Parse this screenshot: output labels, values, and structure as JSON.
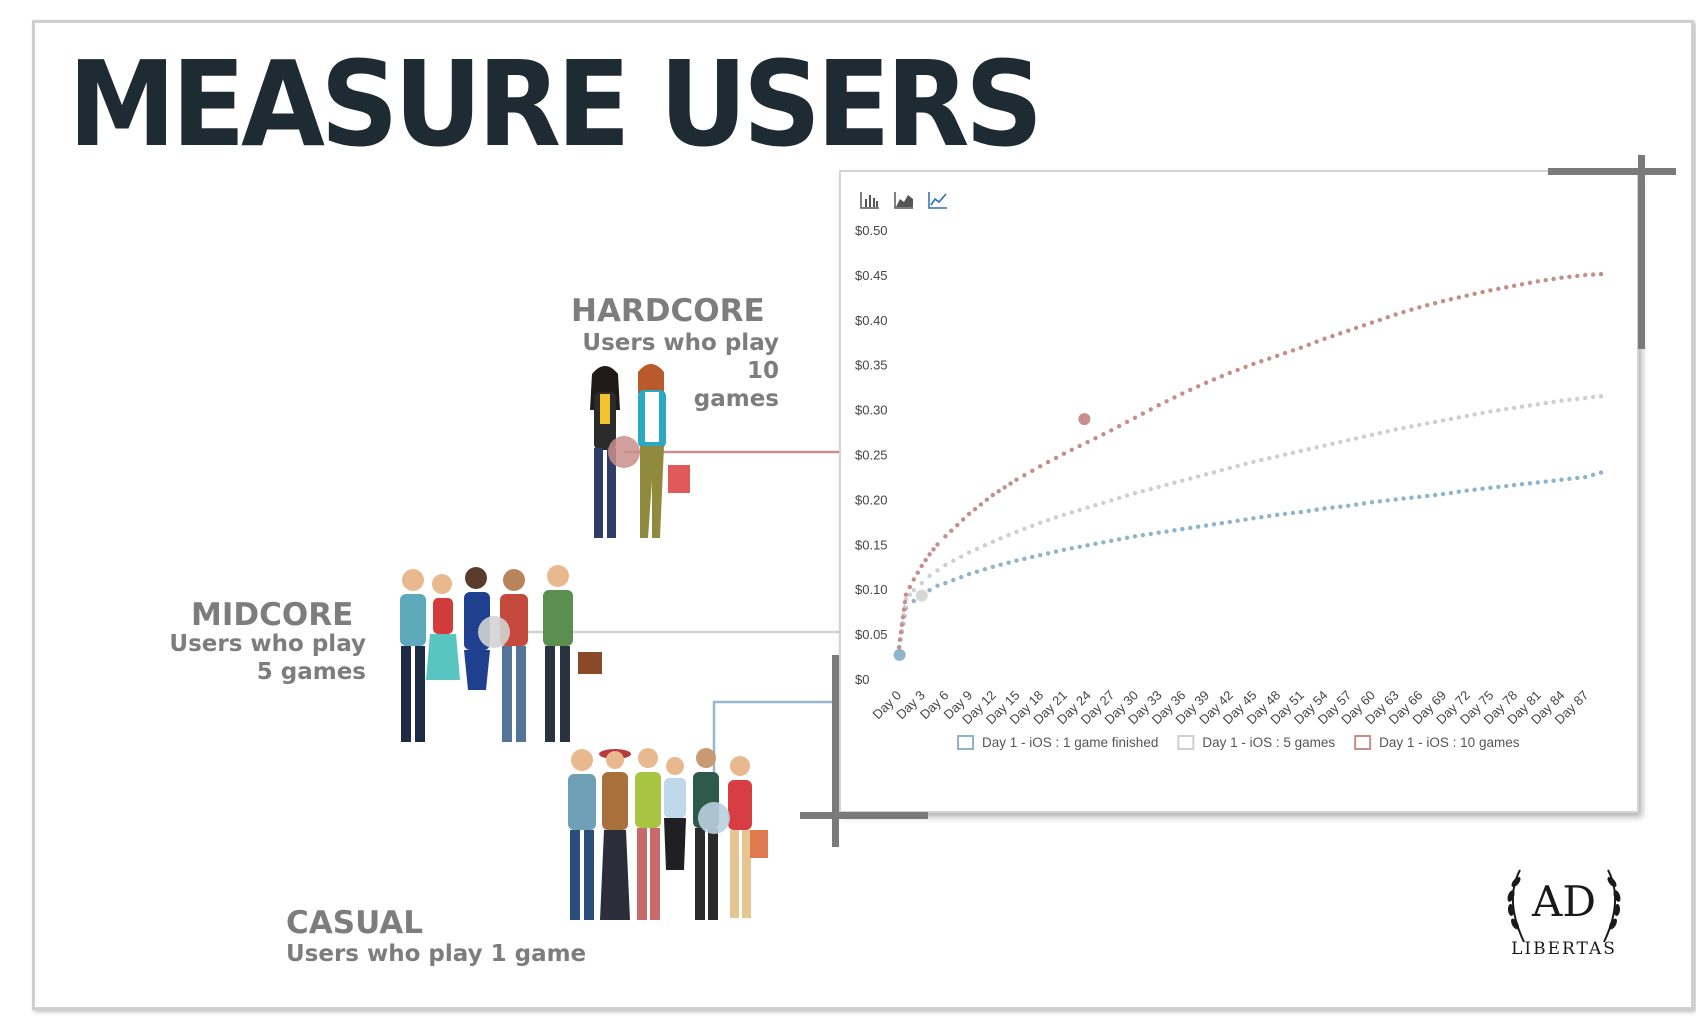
{
  "title": "MEASURE USERS",
  "segments": {
    "hardcore": {
      "name": "HARDCORE",
      "desc_line1": "Users who play 10",
      "desc_line2": "games",
      "color": "#c98f8b"
    },
    "midcore": {
      "name": "MIDCORE",
      "desc_line1": "Users who play",
      "desc_line2": "5 games",
      "color": "#d3d3d3"
    },
    "casual": {
      "name": "CASUAL",
      "desc_line1": "Users who play 1 game",
      "color": "#98b8ce"
    }
  },
  "toolbar": {
    "icons": [
      "bar-chart-icon",
      "area-chart-icon",
      "line-chart-icon"
    ]
  },
  "logo": {
    "text": "AD",
    "subtext": "LIBERTAS"
  },
  "chart_data": {
    "type": "line",
    "y_ticks": [
      "$0",
      "$0.05",
      "$0.10",
      "$0.15",
      "$0.20",
      "$0.25",
      "$0.30",
      "$0.35",
      "$0.40",
      "$0.45",
      "$0.50"
    ],
    "ylim": [
      0,
      0.5
    ],
    "x_ticks": [
      "Day 0",
      "Day 3",
      "Day 6",
      "Day 9",
      "Day 12",
      "Day 15",
      "Day 18",
      "Day 21",
      "Day 24",
      "Day 27",
      "Day 30",
      "Day 33",
      "Day 36",
      "Day 39",
      "Day 42",
      "Day 45",
      "Day 48",
      "Day 51",
      "Day 54",
      "Day 57",
      "Day 60",
      "Day 63",
      "Day 66",
      "Day 69",
      "Day 72",
      "Day 75",
      "Day 78",
      "Day 81",
      "Day 84",
      "Day 87"
    ],
    "x_points": [
      0,
      1,
      2,
      3,
      4,
      5,
      6,
      9,
      12,
      15,
      18,
      21,
      24,
      27,
      30,
      33,
      36,
      39,
      42,
      45,
      48,
      51,
      54,
      57,
      60,
      63,
      66,
      69,
      72,
      75,
      78,
      81,
      84,
      87,
      89
    ],
    "grid": false,
    "legend_position": "bottom",
    "series": [
      {
        "name": "Day 1 - iOS : 1 game finished",
        "color": "#8fb4cc",
        "values": [
          0.028,
          0.08,
          0.088,
          0.094,
          0.1,
          0.105,
          0.108,
          0.118,
          0.126,
          0.133,
          0.139,
          0.145,
          0.15,
          0.155,
          0.16,
          0.164,
          0.168,
          0.172,
          0.176,
          0.18,
          0.184,
          0.187,
          0.191,
          0.194,
          0.198,
          0.201,
          0.204,
          0.207,
          0.211,
          0.214,
          0.217,
          0.22,
          0.223,
          0.226,
          0.231
        ]
      },
      {
        "name": "Day 1 - iOS : 5 games",
        "color": "#cfcfcf",
        "values": [
          0.028,
          0.09,
          0.1,
          0.108,
          0.116,
          0.122,
          0.128,
          0.142,
          0.154,
          0.165,
          0.175,
          0.184,
          0.192,
          0.2,
          0.208,
          0.215,
          0.222,
          0.229,
          0.236,
          0.243,
          0.249,
          0.255,
          0.261,
          0.267,
          0.273,
          0.279,
          0.284,
          0.289,
          0.294,
          0.299,
          0.303,
          0.307,
          0.311,
          0.314,
          0.316
        ]
      },
      {
        "name": "Day 1 - iOS : 10 games",
        "color": "#c48f8b",
        "values": [
          0.028,
          0.095,
          0.112,
          0.127,
          0.14,
          0.151,
          0.16,
          0.185,
          0.206,
          0.223,
          0.238,
          0.252,
          0.265,
          0.278,
          0.292,
          0.306,
          0.319,
          0.331,
          0.342,
          0.352,
          0.361,
          0.37,
          0.38,
          0.389,
          0.398,
          0.407,
          0.415,
          0.422,
          0.428,
          0.434,
          0.439,
          0.444,
          0.448,
          0.451,
          0.452
        ]
      }
    ]
  }
}
